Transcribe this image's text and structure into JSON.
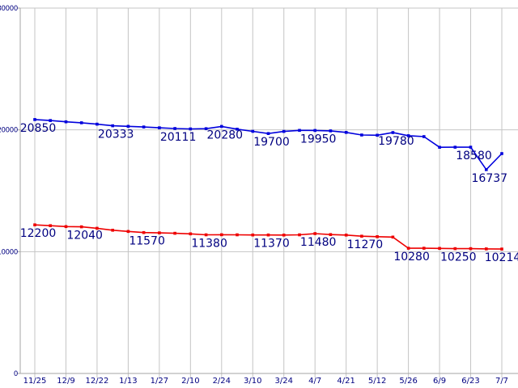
{
  "chart_data": {
    "type": "line",
    "title": "",
    "xlabel": "",
    "ylabel": "",
    "ylim": [
      0,
      30000
    ],
    "grid": true,
    "legend": "none",
    "x_tick_labels": [
      "11/25",
      "12/9",
      "12/22",
      "1/13",
      "1/27",
      "2/10",
      "2/24",
      "3/10",
      "3/24",
      "4/7",
      "4/21",
      "5/12",
      "5/26",
      "6/9",
      "6/23",
      "7/7"
    ],
    "y_ticks": [
      {
        "label": "0",
        "value": 0
      },
      {
        "label": "10000",
        "value": 10000
      },
      {
        "label": "20000",
        "value": 20000
      },
      {
        "label": "30000",
        "value": 30000
      }
    ],
    "points_per_tick_interval": 2,
    "series": [
      {
        "name": "upper-blue-series",
        "color": "#0000dd",
        "values": [
          20850,
          20770,
          20660,
          20580,
          20470,
          20333,
          20290,
          20240,
          20170,
          20111,
          20080,
          20100,
          20280,
          20060,
          19880,
          19700,
          19870,
          19960,
          19950,
          19920,
          19790,
          19580,
          19560,
          19780,
          19520,
          19450,
          18570,
          18580,
          18580,
          16737,
          18050
        ],
        "point_labels": {
          "0": "20850",
          "5": "20333",
          "9": "20111",
          "12": "20280",
          "15": "19700",
          "18": "19950",
          "23": "19780",
          "28": "18580",
          "29": "16737"
        }
      },
      {
        "name": "lower-red-series",
        "color": "#ee0000",
        "values": [
          12200,
          12130,
          12060,
          12040,
          11920,
          11760,
          11660,
          11570,
          11540,
          11510,
          11460,
          11380,
          11390,
          11380,
          11370,
          11370,
          11360,
          11380,
          11480,
          11400,
          11360,
          11270,
          11230,
          11200,
          10280,
          10280,
          10270,
          10250,
          10250,
          10230,
          10214
        ],
        "point_labels": {
          "0": "12200",
          "3": "12040",
          "7": "11570",
          "11": "11380",
          "15": "11370",
          "18": "11480",
          "21": "11270",
          "24": "10280",
          "27": "10250",
          "30": "10214"
        }
      }
    ],
    "colors": {
      "background": "#ffffff",
      "gridline": "#c4c4c4",
      "axis": "#a6a6a6",
      "tick_text": "#000080",
      "point_label_text": "#000080"
    }
  }
}
